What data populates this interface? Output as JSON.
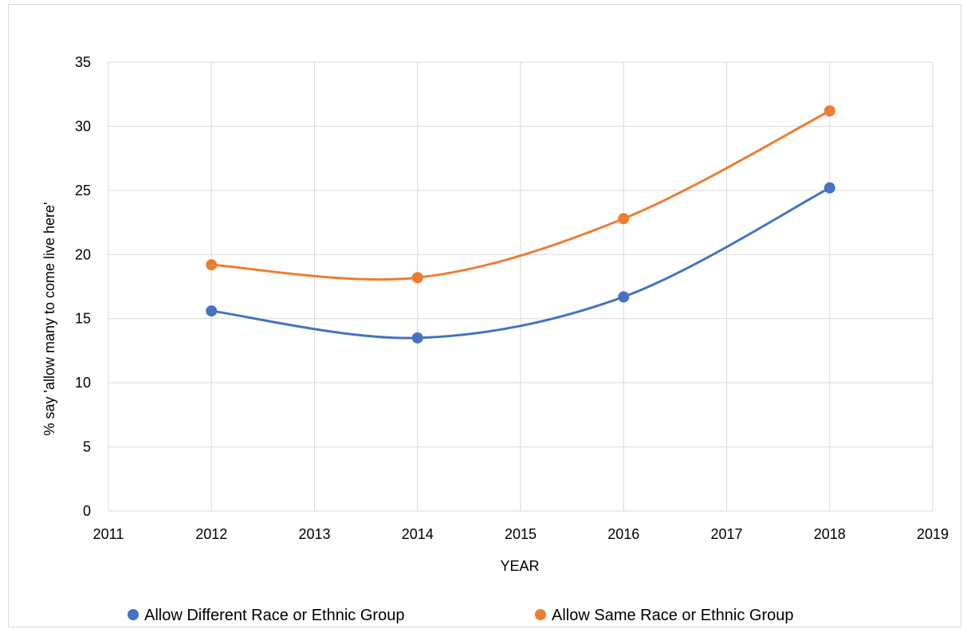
{
  "chart_data": {
    "type": "line",
    "title": "",
    "xlabel": "YEAR",
    "ylabel": "% say 'allow many to come live here'",
    "xlim": [
      2011,
      2019
    ],
    "ylim": [
      0,
      35
    ],
    "x_ticks": [
      "2011",
      "2012",
      "2013",
      "2014",
      "2015",
      "2016",
      "2017",
      "2018",
      "2019"
    ],
    "y_ticks": [
      "0",
      "5",
      "10",
      "15",
      "20",
      "25",
      "30",
      "35"
    ],
    "grid": true,
    "smooth": true,
    "legend_position": "bottom",
    "series": [
      {
        "name": "Allow Different Race or Ethnic Group",
        "color": "#4472c4",
        "x": [
          2012,
          2014,
          2016,
          2018
        ],
        "y": [
          15.6,
          13.5,
          16.7,
          25.2
        ]
      },
      {
        "name": "Allow Same Race or Ethnic Group",
        "color": "#ed7d31",
        "x": [
          2012,
          2014,
          2016,
          2018
        ],
        "y": [
          19.2,
          18.2,
          22.8,
          31.2
        ]
      }
    ]
  }
}
